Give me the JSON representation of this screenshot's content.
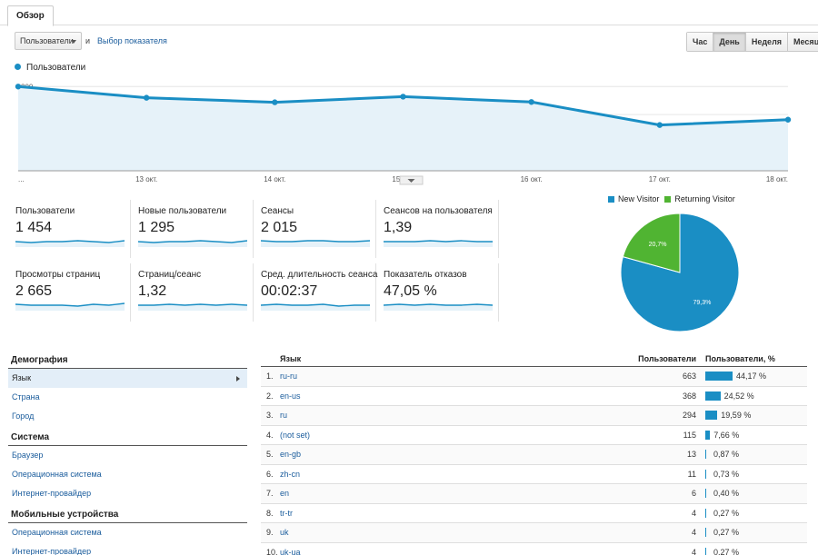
{
  "tab": {
    "label": "Обзор"
  },
  "toolbar": {
    "metric_select": "Пользователи",
    "and_text": "и",
    "metric_link": "Выбор показателя",
    "periods": [
      "Час",
      "День",
      "Неделя",
      "Месяц"
    ],
    "active_period": "День"
  },
  "chart_data": {
    "type": "area",
    "series": [
      {
        "name": "Пользователи",
        "values": [
          300,
          260,
          244,
          264,
          245,
          163,
          182
        ]
      }
    ],
    "x_labels": [
      "...",
      "13 окт.",
      "14 окт.",
      "15 окт.",
      "16 окт.",
      "17 окт.",
      "18 окт."
    ],
    "y_ticks": [
      "300",
      "200",
      "100"
    ],
    "ylim": [
      0,
      330
    ],
    "color": "#1a8ec4"
  },
  "scorecards": [
    {
      "label": "Пользователи",
      "value": "1 454"
    },
    {
      "label": "Новые пользователи",
      "value": "1 295"
    },
    {
      "label": "Сеансы",
      "value": "2 015"
    },
    {
      "label": "Сеансов на пользователя",
      "value": "1,39"
    },
    {
      "label": "Просмотры страниц",
      "value": "2 665"
    },
    {
      "label": "Страниц/сеанс",
      "value": "1,32"
    },
    {
      "label": "Сред. длительность сеанса",
      "value": "00:02:37"
    },
    {
      "label": "Показатель отказов",
      "value": "47,05 %"
    }
  ],
  "pie": {
    "legend": [
      {
        "name": "New Visitor",
        "color": "#1a8ec4"
      },
      {
        "name": "Returning Visitor",
        "color": "#50b432"
      }
    ],
    "slices": [
      {
        "name": "New Visitor",
        "value": 79.3,
        "label": "79,3%",
        "color": "#1a8ec4"
      },
      {
        "name": "Returning Visitor",
        "value": 20.7,
        "label": "20,7%",
        "color": "#50b432"
      }
    ]
  },
  "left_nav": {
    "sections": [
      {
        "title": "Демография",
        "items": [
          "Язык",
          "Страна",
          "Город"
        ]
      },
      {
        "title": "Система",
        "items": [
          "Браузер",
          "Операционная система",
          "Интернет-провайдер"
        ]
      },
      {
        "title": "Мобильные устройства",
        "items": [
          "Операционная система",
          "Интернет-провайдер"
        ]
      }
    ],
    "selected": "Язык"
  },
  "table": {
    "headers": {
      "dim": "Язык",
      "users": "Пользователи",
      "pct": "Пользователи, %"
    },
    "rows": [
      {
        "idx": "1.",
        "lang": "ru-ru",
        "users": "663",
        "pct": "44,17 %",
        "share": 44.17
      },
      {
        "idx": "2.",
        "lang": "en-us",
        "users": "368",
        "pct": "24,52 %",
        "share": 24.52
      },
      {
        "idx": "3.",
        "lang": "ru",
        "users": "294",
        "pct": "19,59 %",
        "share": 19.59
      },
      {
        "idx": "4.",
        "lang": "(not set)",
        "users": "115",
        "pct": "7,66 %",
        "share": 7.66
      },
      {
        "idx": "5.",
        "lang": "en-gb",
        "users": "13",
        "pct": "0,87 %",
        "share": 0.87
      },
      {
        "idx": "6.",
        "lang": "zh-cn",
        "users": "11",
        "pct": "0,73 %",
        "share": 0.73
      },
      {
        "idx": "7.",
        "lang": "en",
        "users": "6",
        "pct": "0,40 %",
        "share": 0.4
      },
      {
        "idx": "8.",
        "lang": "tr-tr",
        "users": "4",
        "pct": "0,27 %",
        "share": 0.27
      },
      {
        "idx": "9.",
        "lang": "uk",
        "users": "4",
        "pct": "0,27 %",
        "share": 0.27
      },
      {
        "idx": "10.",
        "lang": "uk-ua",
        "users": "4",
        "pct": "0,27 %",
        "share": 0.27
      }
    ]
  }
}
